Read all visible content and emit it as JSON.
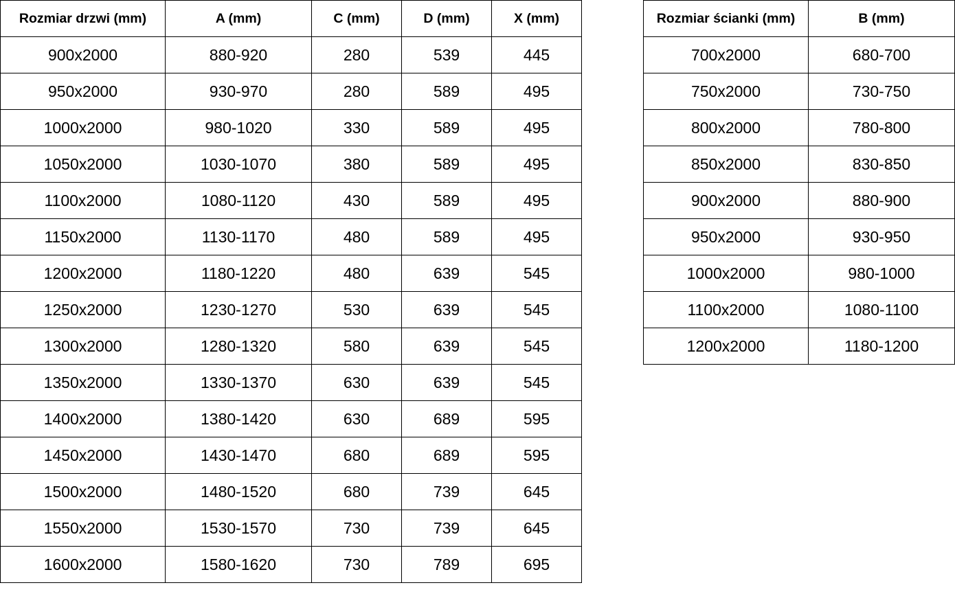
{
  "doors_table": {
    "headers": [
      "Rozmiar drzwi (mm)",
      "A (mm)",
      "C (mm)",
      "D (mm)",
      "X (mm)"
    ],
    "rows": [
      [
        "900x2000",
        "880-920",
        "280",
        "539",
        "445"
      ],
      [
        "950x2000",
        "930-970",
        "280",
        "589",
        "495"
      ],
      [
        "1000x2000",
        "980-1020",
        "330",
        "589",
        "495"
      ],
      [
        "1050x2000",
        "1030-1070",
        "380",
        "589",
        "495"
      ],
      [
        "1100x2000",
        "1080-1120",
        "430",
        "589",
        "495"
      ],
      [
        "1150x2000",
        "1130-1170",
        "480",
        "589",
        "495"
      ],
      [
        "1200x2000",
        "1180-1220",
        "480",
        "639",
        "545"
      ],
      [
        "1250x2000",
        "1230-1270",
        "530",
        "639",
        "545"
      ],
      [
        "1300x2000",
        "1280-1320",
        "580",
        "639",
        "545"
      ],
      [
        "1350x2000",
        "1330-1370",
        "630",
        "639",
        "545"
      ],
      [
        "1400x2000",
        "1380-1420",
        "630",
        "689",
        "595"
      ],
      [
        "1450x2000",
        "1430-1470",
        "680",
        "689",
        "595"
      ],
      [
        "1500x2000",
        "1480-1520",
        "680",
        "739",
        "645"
      ],
      [
        "1550x2000",
        "1530-1570",
        "730",
        "739",
        "645"
      ],
      [
        "1600x2000",
        "1580-1620",
        "730",
        "789",
        "695"
      ]
    ]
  },
  "walls_table": {
    "headers": [
      "Rozmiar ścianki (mm)",
      "B (mm)"
    ],
    "rows": [
      [
        "700x2000",
        "680-700"
      ],
      [
        "750x2000",
        "730-750"
      ],
      [
        "800x2000",
        "780-800"
      ],
      [
        "850x2000",
        "830-850"
      ],
      [
        "900x2000",
        "880-900"
      ],
      [
        "950x2000",
        "930-950"
      ],
      [
        "1000x2000",
        "980-1000"
      ],
      [
        "1100x2000",
        "1080-1100"
      ],
      [
        "1200x2000",
        "1180-1200"
      ]
    ]
  }
}
